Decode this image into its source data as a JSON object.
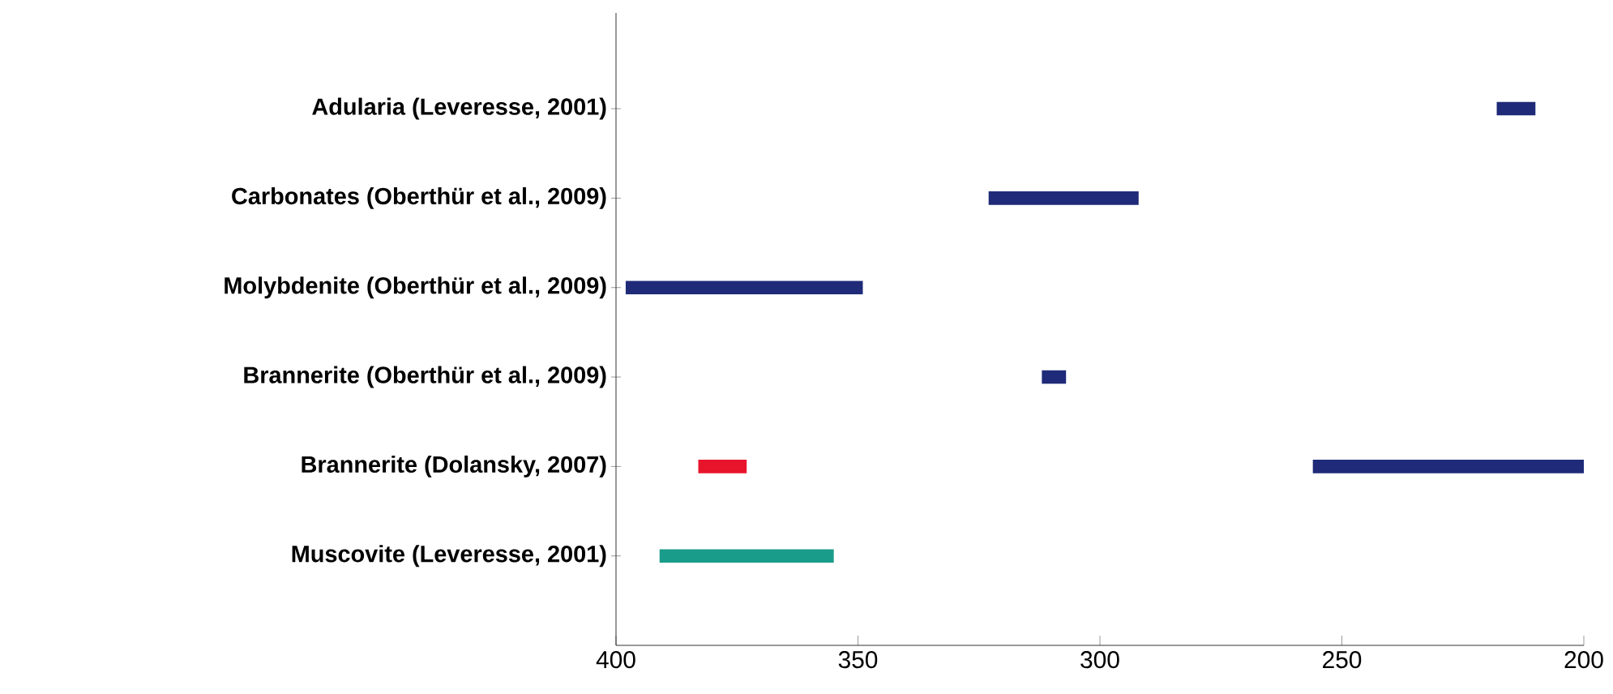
{
  "chart_data": {
    "type": "bar",
    "orientation": "horizontal",
    "categories": [
      "Adularia (Leveresse, 2001)",
      "Carbonates (Oberthür et al., 2009)",
      "Molybdenite (Oberthür et al., 2009)",
      "Brannerite (Oberthür et al., 2009)",
      "Brannerite (Dolansky, 2007)",
      "Muscovite (Leveresse, 2001)"
    ],
    "series": [
      {
        "color": "#1f2a78",
        "base": [
          210,
          292,
          349,
          307,
          200,
          null
        ],
        "values": [
          8,
          31,
          49,
          5,
          56,
          null
        ]
      },
      {
        "color": "#e8142c",
        "base": [
          null,
          null,
          null,
          null,
          373,
          null
        ],
        "values": [
          null,
          null,
          null,
          null,
          10,
          null
        ]
      },
      {
        "color": "#1a9c8a",
        "base": [
          null,
          null,
          null,
          null,
          null,
          355
        ],
        "values": [
          null,
          null,
          null,
          null,
          null,
          36
        ]
      }
    ],
    "xlim": [
      400,
      200
    ],
    "xticks": [
      400,
      350,
      300,
      250,
      200
    ],
    "grid": false
  }
}
